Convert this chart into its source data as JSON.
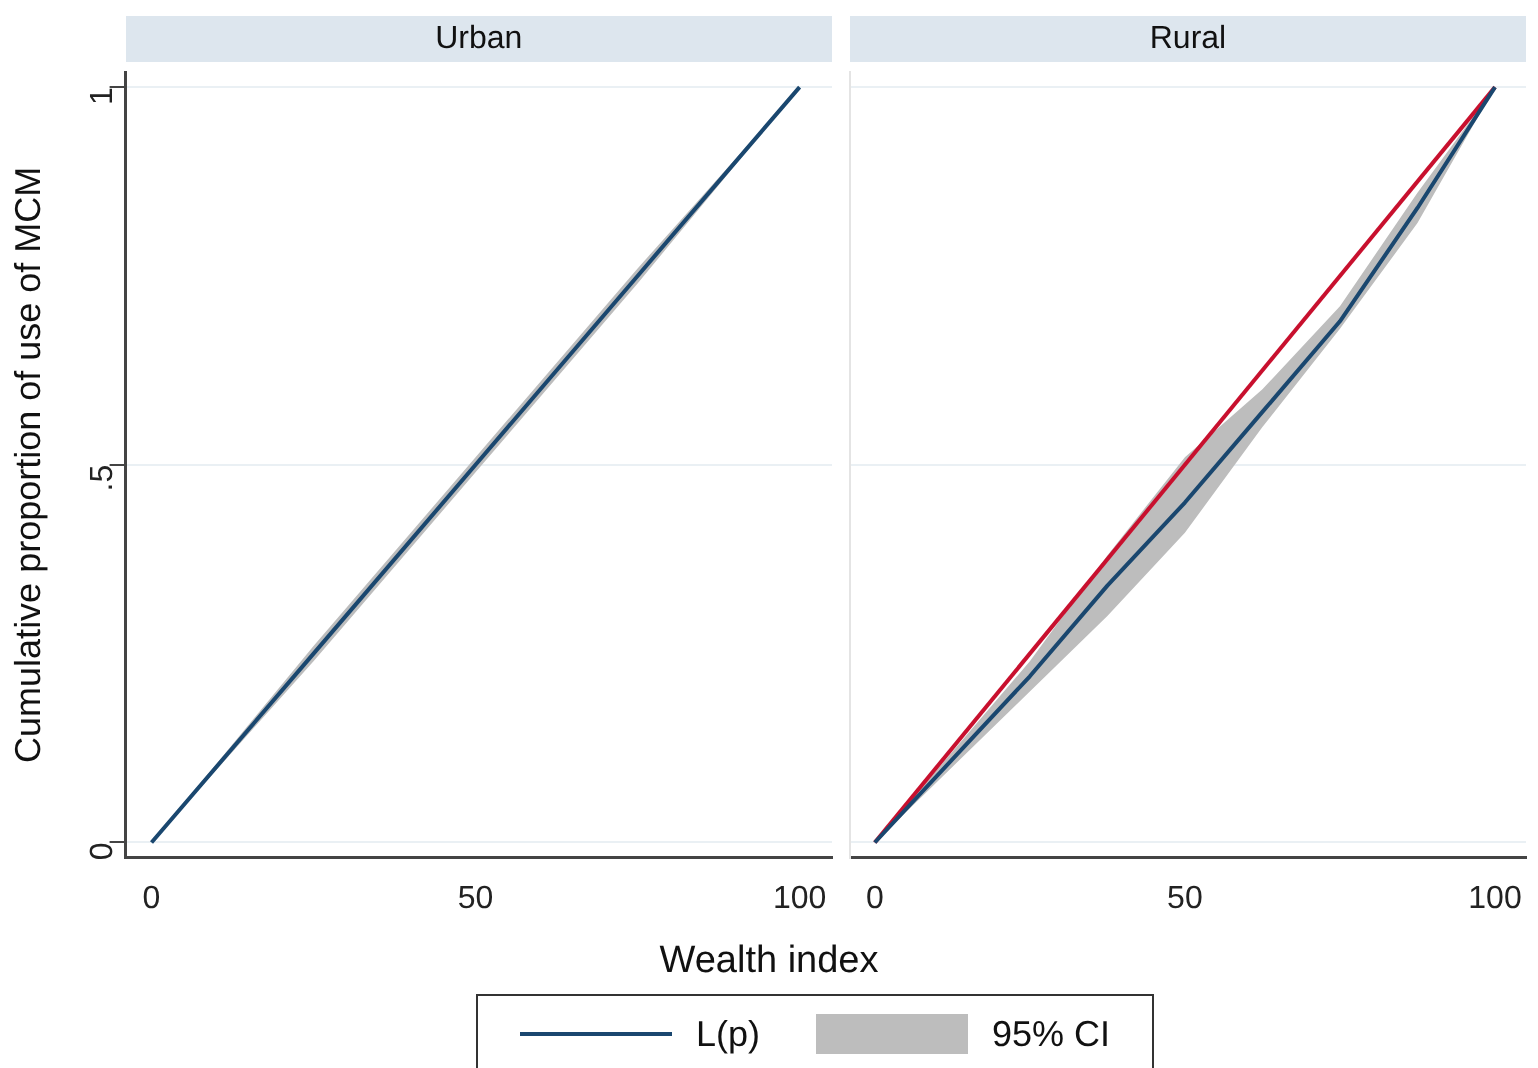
{
  "chart_data": [
    {
      "type": "line",
      "title": "Urban",
      "xlabel": "Wealth index",
      "ylabel": "Cumulative proportion of use of MCM",
      "xlim": [
        -4,
        105
      ],
      "xticks": [
        0,
        50,
        100
      ],
      "ylim": [
        -0.02,
        1.02
      ],
      "yticks": [
        0,
        {
          "value": 0.5,
          "label": ".5"
        },
        1
      ],
      "grid": "y",
      "legend": "bottom",
      "annotations": [
        "95% CI"
      ],
      "series": [
        {
          "name": "L(p)",
          "color": "#1a476f",
          "x": [
            0,
            25,
            50,
            75,
            100
          ],
          "values": [
            0,
            0.25,
            0.5,
            0.75,
            1
          ],
          "lower": [
            0,
            0.24,
            0.49,
            0.74,
            1
          ],
          "upper": [
            0,
            0.26,
            0.51,
            0.76,
            1
          ]
        }
      ]
    },
    {
      "type": "line",
      "title": "Rural",
      "xlim": [
        -4,
        105
      ],
      "xticks": [
        0,
        50,
        100
      ],
      "ylim": [
        -0.02,
        1.02
      ],
      "yticks": [
        0,
        0.5,
        1
      ],
      "grid": "y",
      "tick_labels": "x",
      "series": [
        {
          "color": "#1a476f",
          "x": [
            0,
            12.5,
            25,
            37.5,
            50,
            62.5,
            75,
            87.5,
            100
          ],
          "values": [
            0,
            0.11,
            0.22,
            0.34,
            0.45,
            0.57,
            0.69,
            0.84,
            1
          ],
          "lower": [
            0,
            0.1,
            0.2,
            0.3,
            0.41,
            0.55,
            0.68,
            0.82,
            1
          ],
          "upper": [
            0,
            0.12,
            0.24,
            0.38,
            0.51,
            0.6,
            0.71,
            0.86,
            1
          ]
        },
        {
          "color": "#c8102e",
          "x": [
            0,
            100
          ],
          "values": [
            0,
            1
          ]
        }
      ]
    }
  ]
}
